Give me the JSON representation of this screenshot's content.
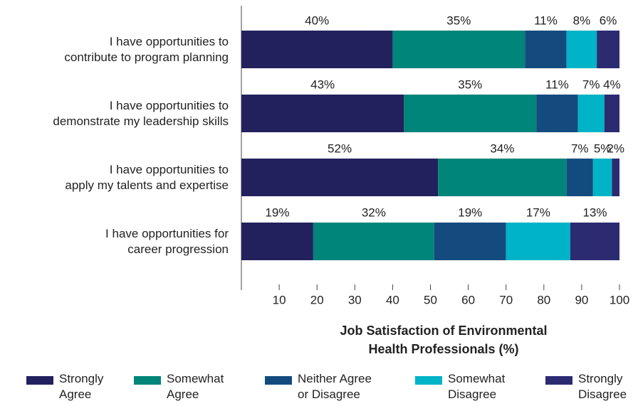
{
  "chart_data": {
    "type": "stacked_bar_horizontal",
    "categories": [
      "I have opportunities to\ncontribute to program planning",
      "I have opportunities to\ndemonstrate my leadership skills",
      "I have opportunities to\napply my talents and expertise",
      "I have opportunities for\ncareer progression"
    ],
    "series": [
      {
        "name": "Strongly\nAgree",
        "color": "#22215e",
        "values": [
          40,
          43,
          52,
          19
        ],
        "value_labels": [
          "40%",
          "43%",
          "52%",
          "19%"
        ]
      },
      {
        "name": "Somewhat\nAgree",
        "color": "#00857a",
        "values": [
          35,
          35,
          34,
          32
        ],
        "value_labels": [
          "35%",
          "35%",
          "34%",
          "32%"
        ]
      },
      {
        "name": "Neither Agree\nor Disagree",
        "color": "#134b7f",
        "values": [
          11,
          11,
          7,
          19
        ],
        "value_labels": [
          "11%",
          "11%",
          "7%",
          "19%"
        ]
      },
      {
        "name": "Somewhat\nDisagree",
        "color": "#00b3c7",
        "values": [
          8,
          7,
          5,
          17
        ],
        "value_labels": [
          "8%",
          "7%",
          "5%",
          "17%"
        ]
      },
      {
        "name": "Strongly\nDisagree",
        "color": "#2c2b72",
        "values": [
          6,
          4,
          2,
          13
        ],
        "value_labels": [
          "6%",
          "4%",
          "2%",
          "13%"
        ]
      }
    ],
    "x_label": "Job Satisfaction of Environmental\nHealth Professionals (%)",
    "xlim": [
      0,
      100
    ],
    "xticks": [
      10,
      20,
      30,
      40,
      50,
      60,
      70,
      80,
      90,
      100
    ],
    "grid": false,
    "legend": "bottom"
  }
}
